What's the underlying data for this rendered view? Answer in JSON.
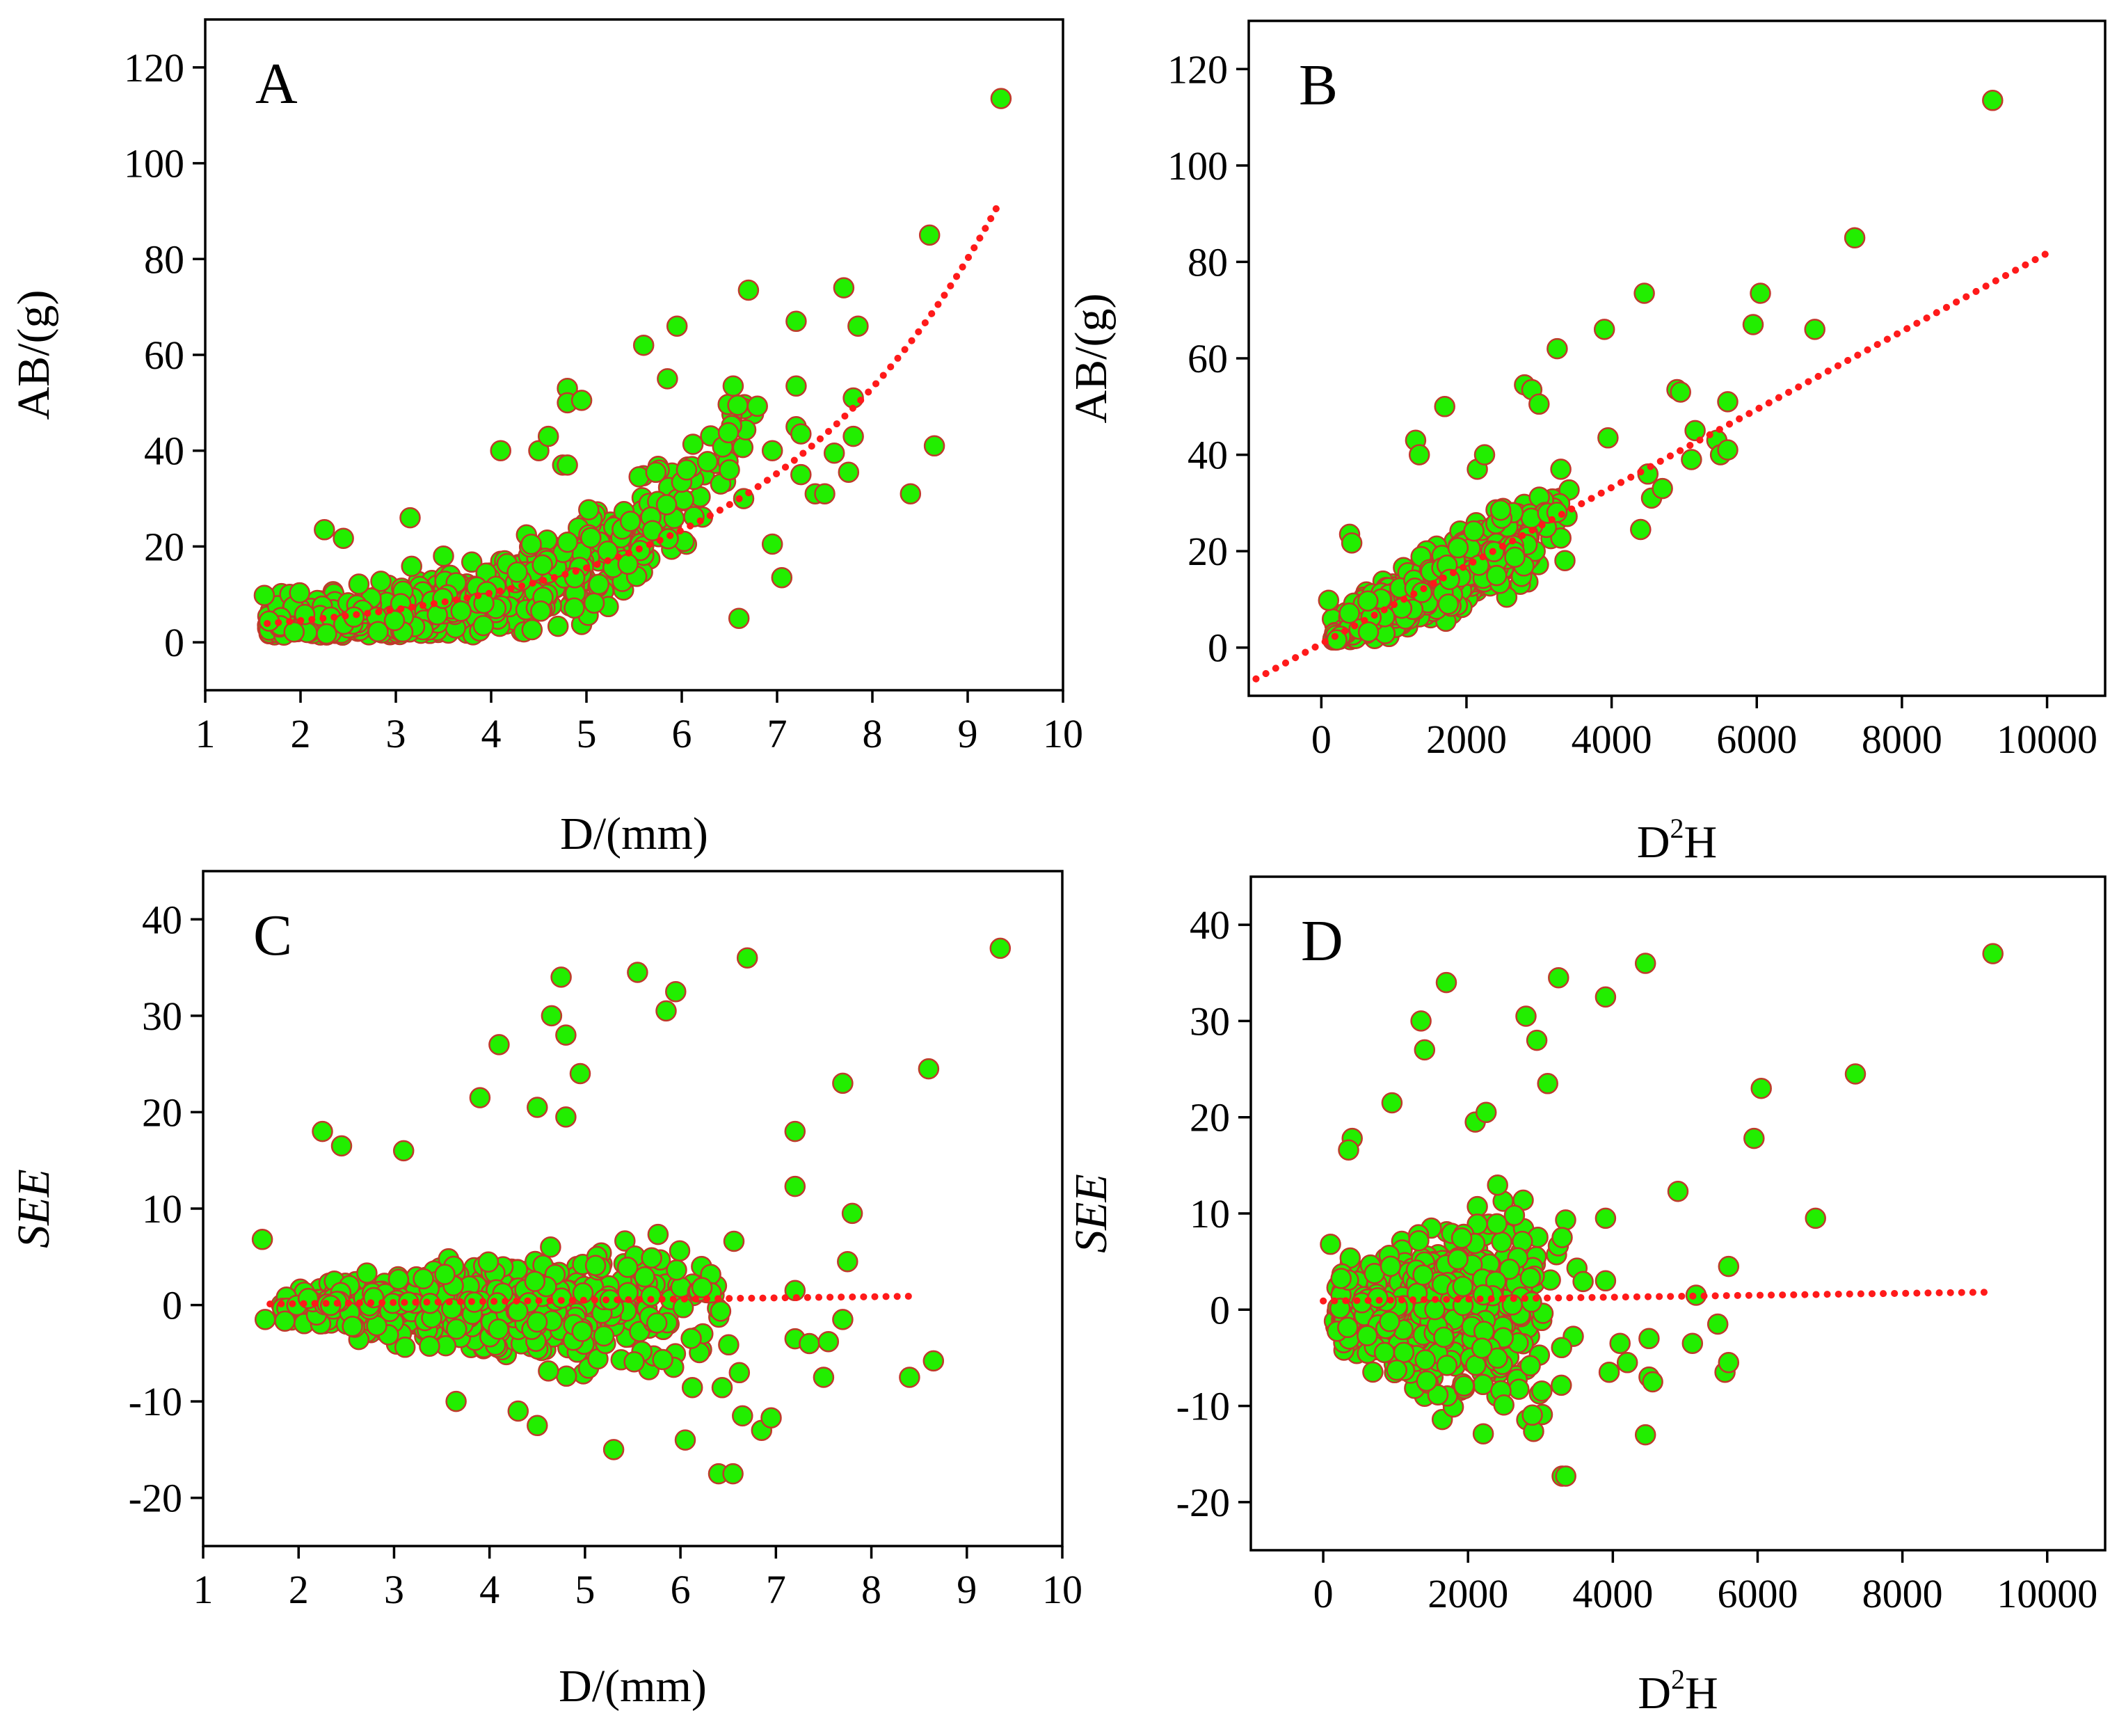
{
  "colors": {
    "point_fill": "#22ee00",
    "point_stroke": "#c0392b",
    "fit_line": "#ff1a1a"
  },
  "chart_data": [
    {
      "id": "A",
      "type": "scatter",
      "panel_label": "A",
      "xlabel": "D/(mm)",
      "ylabel": "AB/(g)",
      "ylabel_italic": false,
      "xlim": [
        1,
        10
      ],
      "ylim": [
        -10,
        130
      ],
      "xticks": [
        1,
        2,
        3,
        4,
        5,
        6,
        7,
        8,
        9,
        10
      ],
      "yticks": [
        0,
        20,
        40,
        60,
        80,
        100,
        120
      ],
      "highlighted_points": [
        [
          1.62,
          9.8
        ],
        [
          2.25,
          23.5
        ],
        [
          2.45,
          21.7
        ],
        [
          3.15,
          26
        ],
        [
          3.5,
          18
        ],
        [
          4.1,
          40
        ],
        [
          4.5,
          40
        ],
        [
          4.6,
          43
        ],
        [
          4.75,
          37
        ],
        [
          4.8,
          37
        ],
        [
          4.8,
          53
        ],
        [
          4.8,
          50
        ],
        [
          4.95,
          50.5
        ],
        [
          5.6,
          62
        ],
        [
          5.85,
          55
        ],
        [
          5.95,
          66
        ],
        [
          6.7,
          73.5
        ],
        [
          7.2,
          67
        ],
        [
          7.7,
          74
        ],
        [
          7.85,
          66
        ],
        [
          7.2,
          53.5
        ],
        [
          7.2,
          45
        ],
        [
          7.25,
          43.5
        ],
        [
          6.95,
          40
        ],
        [
          7.6,
          39.5
        ],
        [
          7.75,
          35.5
        ],
        [
          7.4,
          31
        ],
        [
          7.5,
          31
        ],
        [
          7.25,
          35
        ],
        [
          7.8,
          43
        ],
        [
          7.8,
          51
        ],
        [
          8.4,
          31
        ],
        [
          8.6,
          85
        ],
        [
          8.65,
          41
        ],
        [
          9.35,
          113.5
        ],
        [
          6.6,
          5
        ],
        [
          7.05,
          13.5
        ],
        [
          6.95,
          20.5
        ],
        [
          6.5,
          36
        ],
        [
          6.05,
          36
        ],
        [
          6.65,
          30
        ]
      ],
      "cloud": {
        "x_min": 1.65,
        "x_max": 6.9,
        "count": 640,
        "seed": 11
      },
      "fit": {
        "kind": "exp",
        "a": 2.0,
        "b": 0.41,
        "x_from": 1.65,
        "x_to": 9.35
      }
    },
    {
      "id": "B",
      "type": "scatter",
      "panel_label": "B",
      "xlabel": "D²H",
      "xlabel_base": "D",
      "xlabel_sup": "2",
      "xlabel_tail": "H",
      "ylabel": "AB/(g)",
      "ylabel_italic": false,
      "xlim": [
        -1000,
        10800
      ],
      "ylim": [
        -10,
        130
      ],
      "xticks": [
        0,
        2000,
        4000,
        6000,
        8000,
        10000
      ],
      "yticks": [
        0,
        20,
        40,
        60,
        80,
        100,
        120
      ],
      "highlighted_points": [
        [
          100,
          9.8
        ],
        [
          390,
          23.5
        ],
        [
          420,
          21.7
        ],
        [
          1300,
          43
        ],
        [
          1350,
          40
        ],
        [
          1700,
          50
        ],
        [
          2150,
          37
        ],
        [
          2250,
          40
        ],
        [
          2800,
          54.5
        ],
        [
          2900,
          53.5
        ],
        [
          3000,
          50.5
        ],
        [
          3250,
          62
        ],
        [
          3300,
          37
        ],
        [
          3900,
          66
        ],
        [
          4450,
          73.5
        ],
        [
          4900,
          53.5
        ],
        [
          5150,
          45
        ],
        [
          5450,
          43
        ],
        [
          5500,
          40
        ],
        [
          5600,
          51
        ],
        [
          5600,
          41
        ],
        [
          5950,
          67
        ],
        [
          6050,
          73.5
        ],
        [
          6800,
          66
        ],
        [
          7350,
          85
        ],
        [
          9250,
          113.5
        ],
        [
          4950,
          53
        ],
        [
          4400,
          24.5
        ],
        [
          3950,
          43.5
        ],
        [
          4500,
          36
        ],
        [
          4550,
          31
        ],
        [
          4700,
          33
        ],
        [
          5100,
          39
        ]
      ],
      "cloud": {
        "x_min": 150,
        "x_max": 3600,
        "count": 640,
        "seed": 23
      },
      "fit": {
        "kind": "linear",
        "a": 0.8,
        "b": 0.0081,
        "x_from": -900,
        "x_to": 10100
      }
    },
    {
      "id": "C",
      "type": "scatter",
      "panel_label": "C",
      "xlabel": "D/(mm)",
      "ylabel": "SEE",
      "ylabel_italic": true,
      "xlim": [
        1,
        10
      ],
      "ylim": [
        -25,
        45
      ],
      "xticks": [
        1,
        2,
        3,
        4,
        5,
        6,
        7,
        8,
        9,
        10
      ],
      "yticks": [
        -20,
        -10,
        0,
        10,
        20,
        30,
        40
      ],
      "highlighted_points": [
        [
          1.62,
          6.8
        ],
        [
          1.65,
          -1.5
        ],
        [
          2.25,
          18
        ],
        [
          2.45,
          16.5
        ],
        [
          3.1,
          16
        ],
        [
          3.9,
          21.5
        ],
        [
          4.1,
          27
        ],
        [
          4.5,
          20.5
        ],
        [
          4.65,
          30
        ],
        [
          4.75,
          34
        ],
        [
          4.8,
          28
        ],
        [
          4.8,
          19.5
        ],
        [
          4.95,
          24
        ],
        [
          5.55,
          34.5
        ],
        [
          5.85,
          30.5
        ],
        [
          5.95,
          32.5
        ],
        [
          6.7,
          36
        ],
        [
          7.2,
          18
        ],
        [
          7.2,
          12.3
        ],
        [
          7.7,
          23
        ],
        [
          7.8,
          9.5
        ],
        [
          7.75,
          4.5
        ],
        [
          7.2,
          1.5
        ],
        [
          7.2,
          -3.5
        ],
        [
          7.35,
          -4
        ],
        [
          7.55,
          -3.8
        ],
        [
          7.5,
          -7.5
        ],
        [
          7.7,
          -1.5
        ],
        [
          8.4,
          -7.5
        ],
        [
          8.6,
          24.5
        ],
        [
          8.65,
          -5.8
        ],
        [
          9.35,
          37
        ],
        [
          6.4,
          -17.5
        ],
        [
          6.55,
          -17.5
        ],
        [
          6.85,
          -13
        ],
        [
          6.65,
          -11.5
        ],
        [
          6.05,
          -14
        ],
        [
          5.3,
          -15
        ],
        [
          6.95,
          -11.7
        ],
        [
          4.3,
          -11
        ],
        [
          4.5,
          -12.5
        ],
        [
          3.65,
          -10
        ]
      ],
      "cloud": {
        "x_min": 1.8,
        "x_max": 6.9,
        "count": 620,
        "seed": 37
      },
      "fit": {
        "kind": "linear",
        "a": -0.1,
        "b": 0.12,
        "x_from": 1.7,
        "x_to": 8.5
      }
    },
    {
      "id": "D",
      "type": "scatter",
      "panel_label": "D",
      "xlabel": "D²H",
      "xlabel_base": "D",
      "xlabel_sup": "2",
      "xlabel_tail": "H",
      "ylabel": "SEE",
      "ylabel_italic": true,
      "xlim": [
        -1000,
        10800
      ],
      "ylim": [
        -25,
        45
      ],
      "xticks": [
        0,
        2000,
        4000,
        6000,
        8000,
        10000
      ],
      "yticks": [
        -20,
        -10,
        0,
        10,
        20,
        30,
        40
      ],
      "highlighted_points": [
        [
          100,
          6.8
        ],
        [
          400,
          17.8
        ],
        [
          350,
          16.6
        ],
        [
          950,
          21.5
        ],
        [
          1350,
          30
        ],
        [
          1400,
          27
        ],
        [
          1700,
          34
        ],
        [
          2100,
          19.5
        ],
        [
          2250,
          20.5
        ],
        [
          2800,
          30.5
        ],
        [
          2950,
          28
        ],
        [
          3100,
          23.5
        ],
        [
          3250,
          34.5
        ],
        [
          3900,
          32.5
        ],
        [
          4450,
          36
        ],
        [
          4900,
          12.3
        ],
        [
          5150,
          1.5
        ],
        [
          5100,
          -3.5
        ],
        [
          5450,
          -1.5
        ],
        [
          5550,
          -6.5
        ],
        [
          5600,
          -5.5
        ],
        [
          5600,
          4.5
        ],
        [
          5950,
          17.8
        ],
        [
          6050,
          23
        ],
        [
          6800,
          9.5
        ],
        [
          7350,
          24.5
        ],
        [
          9250,
          37
        ],
        [
          3300,
          -17.3
        ],
        [
          3350,
          -17.3
        ],
        [
          4450,
          -13
        ],
        [
          4500,
          -7
        ],
        [
          4550,
          -7.5
        ],
        [
          3950,
          -6.5
        ],
        [
          4200,
          -5.5
        ],
        [
          4100,
          -3.5
        ],
        [
          4500,
          -3
        ],
        [
          3900,
          3
        ],
        [
          3900,
          9.5
        ],
        [
          3300,
          7.5
        ]
      ],
      "cloud": {
        "x_min": 150,
        "x_max": 3600,
        "count": 620,
        "seed": 53
      },
      "fit": {
        "kind": "linear",
        "a": 0.9,
        "b": 0.0001,
        "x_from": 0,
        "x_to": 9150
      }
    }
  ]
}
